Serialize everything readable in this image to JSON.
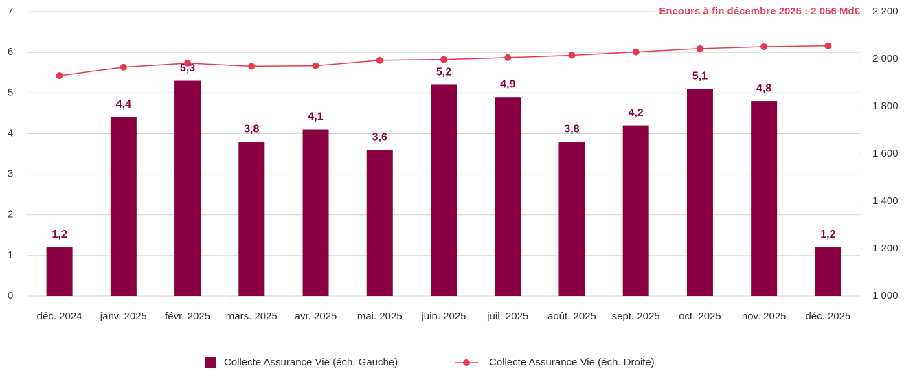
{
  "chart_data": {
    "type": "bar",
    "annotation": "Encours à fin décembre 2025 : 2 056 Md€",
    "categories": [
      "déc. 2024",
      "janv. 2025",
      "févr. 2025",
      "mars. 2025",
      "avr. 2025",
      "mai. 2025",
      "juin. 2025",
      "juil. 2025",
      "août. 2025",
      "sept. 2025",
      "oct. 2025",
      "nov. 2025",
      "déc. 2025"
    ],
    "series": [
      {
        "name": "Collecte Assurance Vie (éch. Gauche)",
        "type": "bar",
        "color": "#8a0041",
        "values": [
          1.2,
          4.4,
          5.3,
          3.8,
          4.1,
          3.6,
          5.2,
          4.9,
          3.8,
          4.2,
          5.1,
          4.8,
          1.2
        ],
        "value_labels": [
          "1,2",
          "4,4",
          "5,3",
          "3,8",
          "4,1",
          "3,6",
          "5,2",
          "4,9",
          "3,8",
          "4,2",
          "5,1",
          "4,8",
          "1,2"
        ]
      },
      {
        "name": "Collecte Assurance Vie (éch. Droite)",
        "type": "line",
        "axis": "y2",
        "color": "#e8374f",
        "values": [
          1930,
          1966,
          1983,
          1970,
          1972,
          1995,
          1998,
          2006,
          2016,
          2030,
          2044,
          2052,
          2056
        ]
      }
    ],
    "ylim": [
      0,
      7
    ],
    "yticks": [
      0,
      1,
      2,
      3,
      4,
      5,
      6,
      7
    ],
    "y2lim": [
      1000,
      2200
    ],
    "y2ticks": [
      {
        "value": 1000,
        "label": "1 000"
      },
      {
        "value": 1200,
        "label": "1 200"
      },
      {
        "value": 1400,
        "label": "1 400"
      },
      {
        "value": 1600,
        "label": "1 600"
      },
      {
        "value": 1800,
        "label": "1 800"
      },
      {
        "value": 2000,
        "label": "2 000"
      },
      {
        "value": 2200,
        "label": "2 200"
      }
    ],
    "grid": true
  }
}
